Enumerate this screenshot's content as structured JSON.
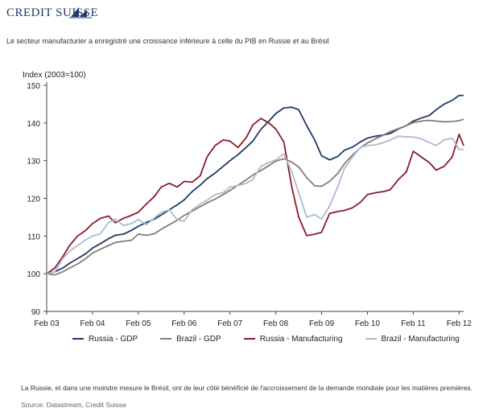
{
  "brand": {
    "name": "CREDIT SUISSE"
  },
  "header": {
    "subtitle": "Le secteur manufacturier a enregistré une croissance inférieure à celle du PIB en Russie et au Brésil"
  },
  "chart_data": {
    "type": "line",
    "title": "",
    "ylabel": "Index (2003=100)",
    "xlabel": "",
    "ylim": [
      90,
      150
    ],
    "yticks": [
      90,
      100,
      110,
      120,
      130,
      140,
      150
    ],
    "xlim": [
      0,
      36.4
    ],
    "x_tick_labels": [
      "Feb 03",
      "Feb 04",
      "Feb 05",
      "Feb 06",
      "Feb 07",
      "Feb 08",
      "Feb 09",
      "Feb 10",
      "Feb 11",
      "Feb 12"
    ],
    "x_tick_positions": [
      0,
      4,
      8,
      12,
      16,
      20,
      24,
      28,
      32,
      36
    ],
    "x": [
      0,
      0.7,
      1.4,
      2,
      2.7,
      3.4,
      4,
      4.7,
      5.4,
      6,
      6.7,
      7.4,
      8,
      8.7,
      9.4,
      10,
      10.7,
      11.4,
      12,
      12.7,
      13.4,
      14,
      14.7,
      15.4,
      16,
      16.7,
      17.4,
      18,
      18.7,
      19.4,
      20,
      20.7,
      21.4,
      22,
      22.7,
      23.4,
      24,
      24.7,
      25.4,
      26,
      26.7,
      27.4,
      28,
      28.7,
      29.4,
      30,
      30.7,
      31.4,
      32,
      32.7,
      33.4,
      34,
      34.7,
      35.4,
      36,
      36.4
    ],
    "grid": false,
    "legend_position": "bottom",
    "series": [
      {
        "name": "Russia - GDP",
        "color": "#1f3a68",
        "values": [
          100,
          100.5,
          101.5,
          102.8,
          104,
          105.3,
          106.8,
          108,
          109.3,
          110.2,
          110.5,
          111.5,
          112.6,
          113.6,
          114.5,
          115.6,
          117,
          118.3,
          119.6,
          121.8,
          123.5,
          125.2,
          126.7,
          128.5,
          130,
          131.6,
          133.5,
          135.2,
          138.3,
          140.5,
          142.5,
          144,
          144.2,
          143.5,
          139.3,
          135.5,
          131.3,
          130.2,
          131.1,
          132.8,
          133.6,
          135,
          136,
          136.5,
          136.8,
          137.2,
          138.4,
          139.3,
          140.5,
          141.3,
          142,
          143.5,
          145,
          146,
          147.3,
          147.3
        ]
      },
      {
        "name": "Brazil - GDP",
        "color": "#8c7b6e",
        "values": [
          100,
          99.7,
          100.5,
          101.5,
          102.6,
          104,
          105.5,
          106.5,
          107.5,
          108.3,
          108.6,
          108.9,
          110.5,
          110.2,
          110.6,
          111.8,
          113,
          114.2,
          115.5,
          116.6,
          117.8,
          118.8,
          119.8,
          121,
          122.1,
          123.5,
          124.9,
          126.2,
          127.4,
          128.7,
          129.9,
          130.5,
          129.6,
          128.3,
          125.5,
          123.3,
          123.2,
          124.5,
          126.6,
          129.2,
          131.5,
          133.5,
          134.7,
          135.8,
          136.8,
          137.7,
          138.5,
          139.3,
          140.1,
          140.5,
          140.7,
          140.5,
          140.3,
          140.4,
          140.6,
          141
        ]
      },
      {
        "name": "Russia - Manufacturing",
        "color": "#8b1a2b",
        "values": [
          100,
          101.5,
          104.5,
          107.5,
          110,
          111.5,
          113.3,
          114.7,
          115.3,
          113.5,
          114.7,
          115.5,
          116.3,
          118.5,
          120.5,
          123,
          124,
          123,
          124.5,
          124.3,
          126,
          131,
          134,
          135.5,
          135.2,
          133.5,
          136,
          139.5,
          141.2,
          140,
          138.4,
          135,
          123,
          115,
          110.1,
          110.5,
          111,
          116,
          116.5,
          116.8,
          117.5,
          119,
          121,
          121.5,
          121.8,
          122.3,
          125,
          127,
          132.5,
          131,
          129.5,
          127.5,
          128.5,
          131,
          137,
          134
        ]
      },
      {
        "name": "Brazil - Manufacturing",
        "color": "#a9bcd3",
        "values": [
          100,
          100.5,
          104,
          106,
          107.5,
          109,
          110,
          110.6,
          113.6,
          114.5,
          112.8,
          113.3,
          114.4,
          113,
          114.8,
          116.3,
          117,
          114.3,
          114,
          117,
          118.5,
          119.5,
          121,
          121.5,
          123,
          123.4,
          124,
          125,
          128.5,
          129.5,
          130.2,
          131.8,
          127,
          121.5,
          115,
          115.7,
          114.5,
          118,
          123,
          128,
          131,
          133.6,
          134,
          134.2,
          134.8,
          135.5,
          136.5,
          136.3,
          136.3,
          135.8,
          134.8,
          134,
          135.5,
          136,
          133,
          133
        ]
      }
    ]
  },
  "footer": {
    "note": "La Russie, et dans une moindre mesure le Brésil, ont de leur côté bénéficié de l'accroissement de la demande mondiale pour les matières premières.",
    "source": "Source: Datastream, Credit Suisse"
  }
}
